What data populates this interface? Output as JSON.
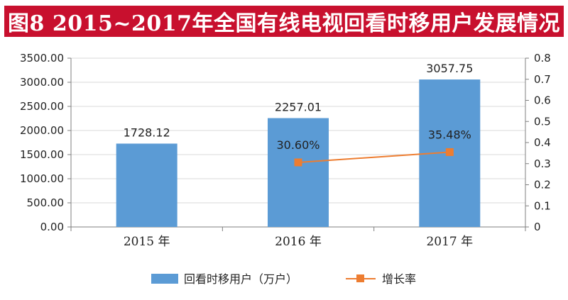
{
  "chart_data": {
    "type": "bar",
    "title": "图8  2015~2017年全国有线电视回看时移用户发展情况",
    "categories": [
      "2015 年",
      "2016 年",
      "2017 年"
    ],
    "series": [
      {
        "name": "回看时移用户（万户）",
        "type": "bar",
        "axis": "left",
        "values": [
          1728.12,
          2257.01,
          3057.75
        ],
        "labels": [
          "1728.12",
          "2257.01",
          "3057.75"
        ],
        "color": "#5b9bd5"
      },
      {
        "name": "增长率",
        "type": "line",
        "axis": "right",
        "values": [
          null,
          0.306,
          0.3548
        ],
        "labels": [
          "",
          "30.60%",
          "35.48%"
        ],
        "color": "#ed7d31"
      }
    ],
    "y_left": {
      "min": 0,
      "max": 3500,
      "ticks": [
        "0.00",
        "500.00",
        "1000.00",
        "1500.00",
        "2000.00",
        "2500.00",
        "3000.00",
        "3500.00"
      ]
    },
    "y_right": {
      "min": 0,
      "max": 0.8,
      "ticks": [
        "0",
        "0.1",
        "0.2",
        "0.3",
        "0.4",
        "0.5",
        "0.6",
        "0.7",
        "0.8"
      ]
    },
    "legend": [
      "回看时移用户（万户）",
      "增长率"
    ],
    "colors": {
      "title_bg": "#c8102e",
      "bar": "#5b9bd5",
      "line": "#ed7d31",
      "grid": "#d9d9d9"
    }
  }
}
